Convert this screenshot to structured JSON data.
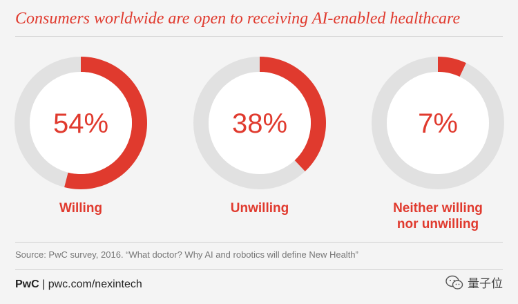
{
  "header": {
    "title": "Consumers worldwide are open to receiving AI-enabled healthcare"
  },
  "chart_data": {
    "type": "donut",
    "title": "Consumers worldwide are open to receiving AI-enabled healthcare",
    "unit": "%",
    "series": [
      {
        "value": 54,
        "display": "54%",
        "label": "Willing"
      },
      {
        "value": 38,
        "display": "38%",
        "label": "Unwilling"
      },
      {
        "value": 7,
        "display": "7%",
        "label": "Neither willing nor unwilling"
      }
    ],
    "colors": {
      "fill": "#e03a2e",
      "track": "#e1e1e1",
      "center": "#ffffff",
      "text": "#e03a2e"
    }
  },
  "labels": {
    "willing": "Willing",
    "unwilling": "Unwilling",
    "neither_line1": "Neither willing",
    "neither_line2": "nor unwilling"
  },
  "source": "Source: PwC survey, 2016. “What doctor? Why AI and robotics will define New Health”",
  "footer": {
    "brand": "PwC",
    "separator": " | ",
    "url": "pwc.com/nexintech"
  },
  "watermark": {
    "icon": "wechat-icon",
    "text": "量子位"
  }
}
